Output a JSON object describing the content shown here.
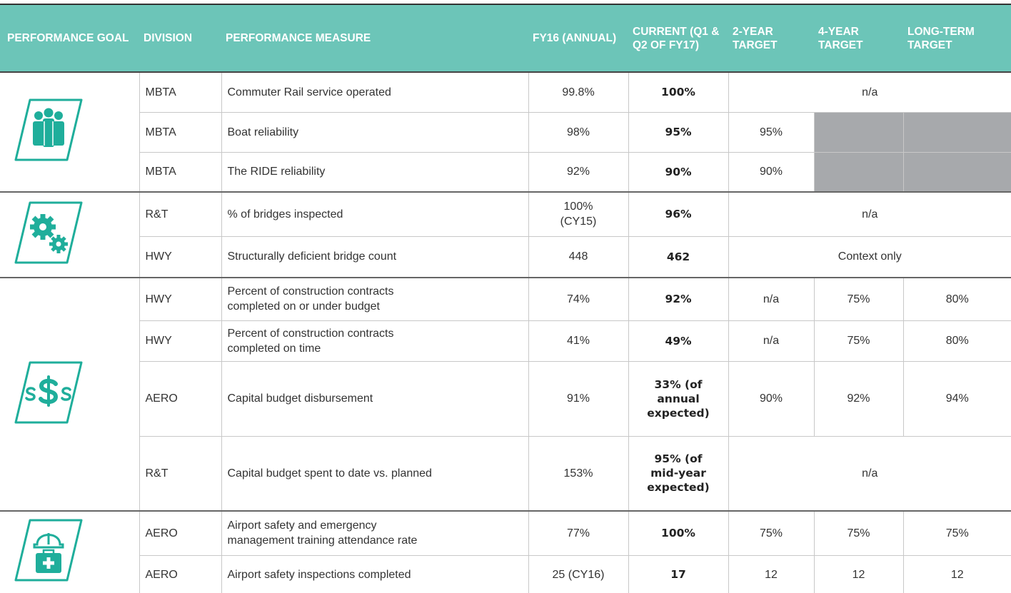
{
  "header": [
    "PERFORMANCE GOAL",
    "DIVISION",
    "PERFORMANCE MEASURE",
    "FY16 (ANNUAL)",
    "CURRENT (Q1 & Q2 OF FY17)",
    "2-YEAR TARGET",
    "4-YEAR TARGET",
    "LONG-TERM TARGET"
  ],
  "rows": [
    {
      "division": "MBTA",
      "measure": "Commuter Rail service operated",
      "fy16": "99.8%",
      "current": "100%",
      "targets": [
        "n/a"
      ]
    },
    {
      "division": "MBTA",
      "measure": "Boat reliability",
      "fy16": "98%",
      "current": "95%",
      "targets": [
        "95%"
      ]
    },
    {
      "division": "MBTA",
      "measure": "The RIDE reliability",
      "fy16": "92%",
      "current": "90%",
      "targets": [
        "90%"
      ]
    },
    {
      "division": "R&T",
      "measure": "% of bridges inspected",
      "fy16": "100%\n(CY15)",
      "current": "96%",
      "targets": [
        "n/a"
      ]
    },
    {
      "division": "HWY",
      "measure": "Structurally deficient bridge count",
      "fy16": "448",
      "current": "462",
      "targets": [
        "Context only"
      ]
    },
    {
      "division": "HWY",
      "measure": "Percent of construction contracts\ncompleted on or under budget",
      "fy16": "74%",
      "current": "92%",
      "targets": [
        "n/a",
        "75%",
        "80%"
      ]
    },
    {
      "division": "HWY",
      "measure": "Percent of construction contracts\ncompleted on time",
      "fy16": "41%",
      "current": "49%",
      "targets": [
        "n/a",
        "75%",
        "80%"
      ]
    },
    {
      "division": "AERO",
      "measure": "Capital budget disbursement",
      "fy16": "91%",
      "current": "33% (of\nannual\nexpected)",
      "targets": [
        "90%",
        "92%",
        "94%"
      ]
    },
    {
      "division": "R&T",
      "measure": "Capital budget spent to date vs. planned",
      "fy16": "153%",
      "current": "95% (of\nmid-year\nexpected)",
      "targets": [
        "n/a"
      ]
    },
    {
      "division": "AERO",
      "measure": "Airport safety and emergency\nmanagement training attendance rate",
      "fy16": "77%",
      "current": "100%",
      "targets": [
        "75%",
        "75%",
        "75%"
      ]
    },
    {
      "division": "AERO",
      "measure": "Airport safety inspections completed",
      "fy16": "25 (CY16)",
      "current": "17",
      "targets": [
        "12",
        "12",
        "12"
      ]
    }
  ]
}
